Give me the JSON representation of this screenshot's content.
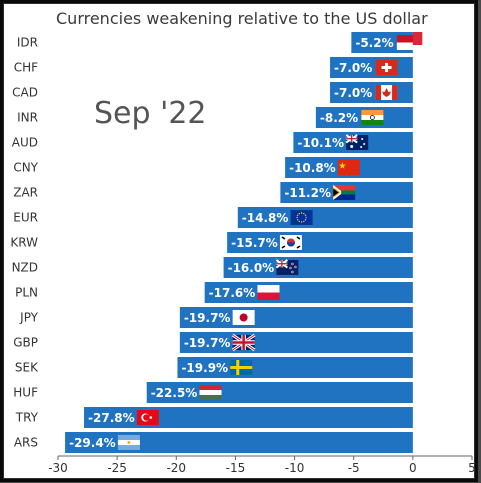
{
  "chart_data": {
    "type": "bar",
    "orientation": "horizontal",
    "title": "Currencies weakening relative to the US dollar",
    "annotation": "Sep '22",
    "categories": [
      "IDR",
      "CHF",
      "CAD",
      "INR",
      "AUD",
      "CNY",
      "ZAR",
      "EUR",
      "KRW",
      "NZD",
      "PLN",
      "JPY",
      "GBP",
      "SEK",
      "HUF",
      "TRY",
      "ARS"
    ],
    "values": [
      -5.2,
      -7.0,
      -7.0,
      -8.2,
      -10.1,
      -10.8,
      -11.2,
      -14.8,
      -15.7,
      -16.0,
      -17.6,
      -19.7,
      -19.7,
      -19.9,
      -22.5,
      -27.8,
      -29.4
    ],
    "data_labels": [
      "-5.2%",
      "-7.0%",
      "-7.0%",
      "-8.2%",
      "-10.1%",
      "-10.8%",
      "-11.2%",
      "-14.8%",
      "-15.7%",
      "-16.0%",
      "-17.6%",
      "-19.7%",
      "-19.7%",
      "-19.9%",
      "-22.5%",
      "-27.8%",
      "-29.4%"
    ],
    "flags": [
      "indonesia-flag",
      "switzerland-flag",
      "canada-flag",
      "india-flag",
      "australia-flag",
      "china-flag",
      "south-africa-flag",
      "eu-flag",
      "south-korea-flag",
      "new-zealand-flag",
      "poland-flag",
      "japan-flag",
      "uk-flag",
      "sweden-flag",
      "hungary-flag",
      "turkey-flag",
      "argentina-flag"
    ],
    "xlim": [
      -30,
      5
    ],
    "xticks": [
      -30,
      -25,
      -20,
      -15,
      -10,
      -5,
      0,
      5
    ],
    "grid": false,
    "bar_color": "#1f73c1"
  }
}
